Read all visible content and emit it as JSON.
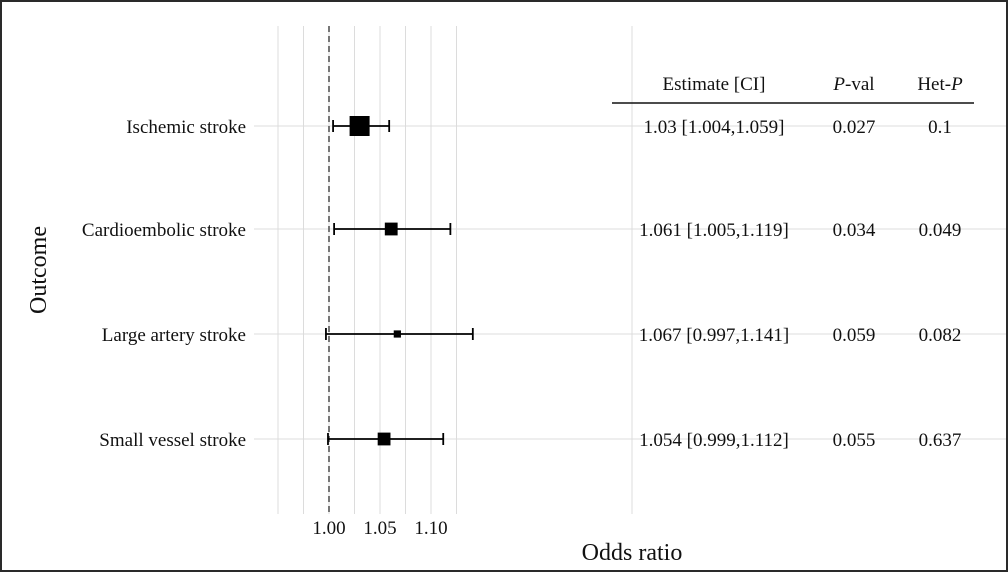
{
  "chart_data": {
    "type": "forest",
    "xlabel": "Odds ratio",
    "ylabel": "Outcome",
    "xlim": [
      0.95,
      1.13
    ],
    "x_ticks": [
      1.0,
      1.05,
      1.1
    ],
    "x_tick_labels": [
      "1.00",
      "1.05",
      "1.10"
    ],
    "reference_line": 1.0,
    "grid": true,
    "rows": [
      {
        "label": "Ischemic stroke",
        "or": 1.03,
        "lower": 1.004,
        "upper": 1.059,
        "estimate_text": "1.03 [1.004,1.059]",
        "p": "0.027",
        "het_p": "0.1",
        "weight": 1.0
      },
      {
        "label": "Cardioembolic stroke",
        "or": 1.061,
        "lower": 1.005,
        "upper": 1.119,
        "estimate_text": "1.061 [1.005,1.119]",
        "p": "0.034",
        "het_p": "0.049",
        "weight": 0.55
      },
      {
        "label": "Large artery stroke",
        "or": 1.067,
        "lower": 0.997,
        "upper": 1.141,
        "estimate_text": "1.067 [0.997,1.141]",
        "p": "0.059",
        "het_p": "0.082",
        "weight": 0.2
      },
      {
        "label": "Small vessel stroke",
        "or": 1.054,
        "lower": 0.999,
        "upper": 1.112,
        "estimate_text": "1.054 [0.999,1.112]",
        "p": "0.055",
        "het_p": "0.637",
        "weight": 0.55
      }
    ],
    "table_headers": {
      "estimate": "Estimate [CI]",
      "p_italic": "P",
      "p_suffix": "-val",
      "het_prefix": "Het-",
      "het_italic": "P"
    },
    "colors": {
      "grid": "#dcdcdc",
      "marker": "#000000",
      "reference": "#555555"
    }
  }
}
